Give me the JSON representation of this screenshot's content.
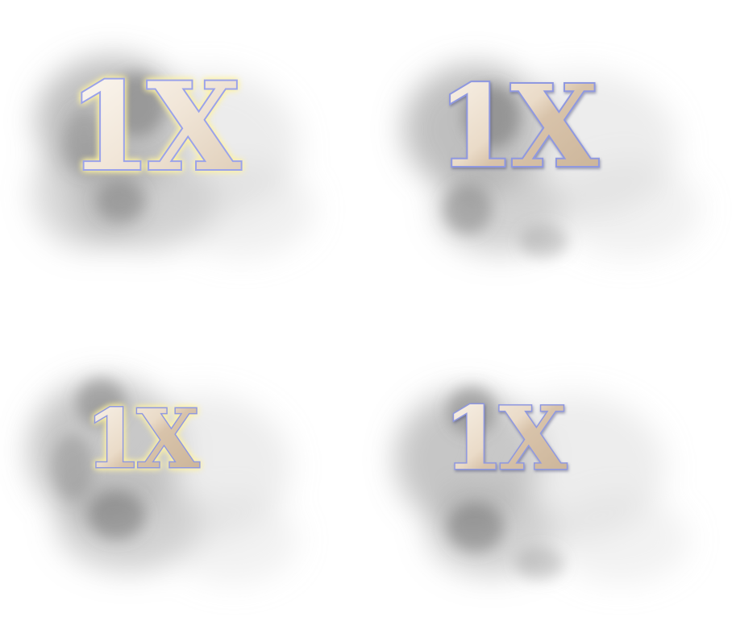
{
  "sprites": [
    {
      "id": "multiplier-1",
      "label": "1X",
      "state": "glow"
    },
    {
      "id": "multiplier-2",
      "label": "1X",
      "state": "normal"
    },
    {
      "id": "multiplier-3",
      "label": "1X",
      "state": "small-glow"
    },
    {
      "id": "multiplier-4",
      "label": "1X",
      "state": "small-normal"
    }
  ],
  "colors": {
    "face_light": "#f6eee4",
    "face_mid": "#e4d3bf",
    "face_dark": "#c6b099",
    "outline": "#8f98e0",
    "outline_dark": "#6d73b8",
    "glow": "#fff4a8",
    "smoke": "#7f7f7f"
  }
}
